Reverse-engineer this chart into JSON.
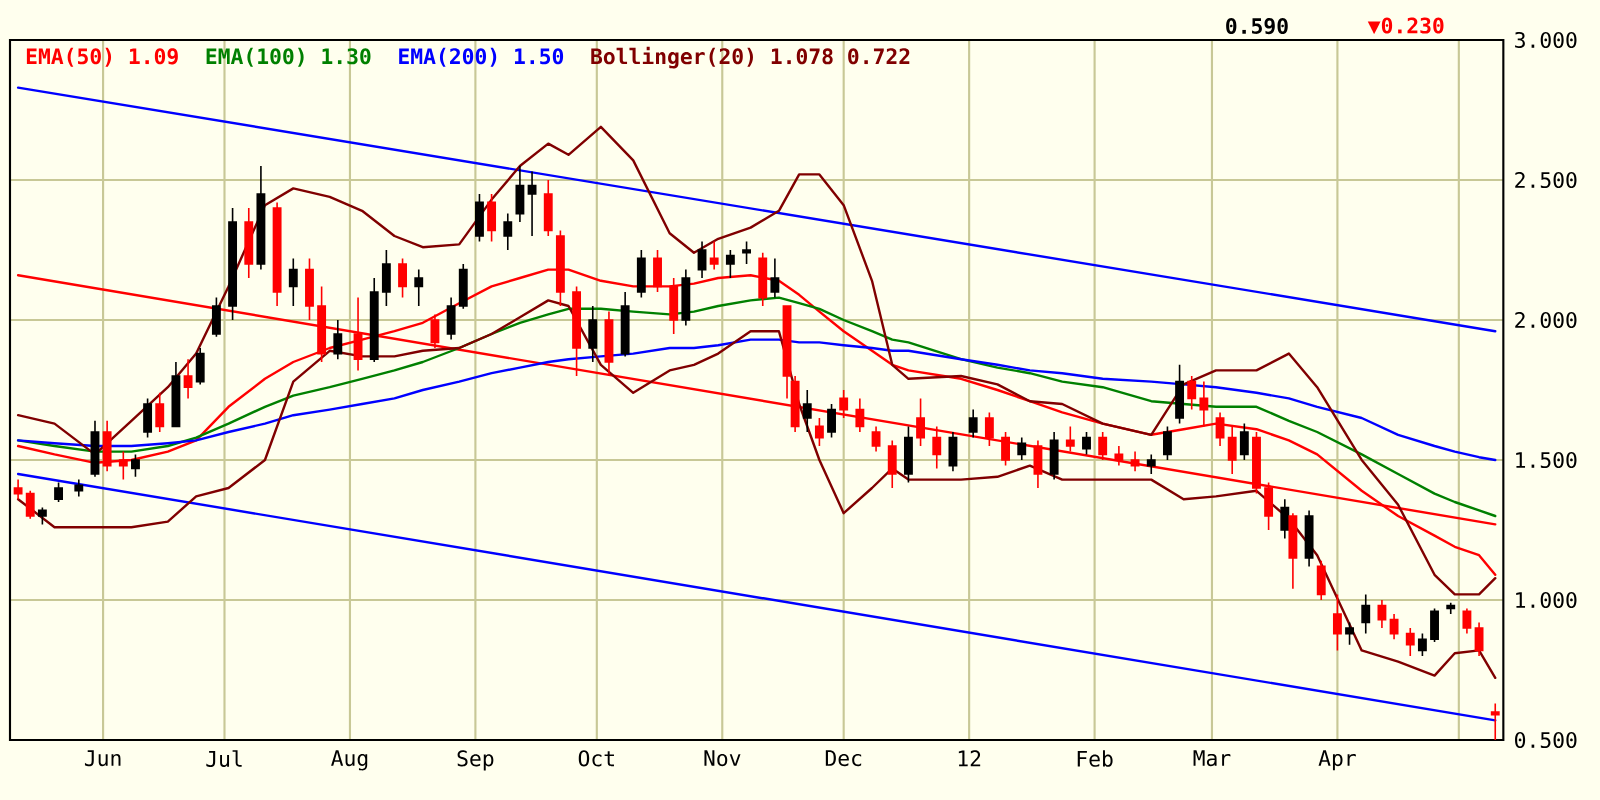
{
  "chart_data": {
    "type": "candlestick",
    "xlim": [
      "2011-05-09",
      "2012-05-12"
    ],
    "ylim": [
      0.5,
      3.0
    ],
    "xticks": [
      {
        "value": "2011-06-01",
        "label": "Jun"
      },
      {
        "value": "2011-07-01",
        "label": "Jul"
      },
      {
        "value": "2011-08-01",
        "label": "Aug"
      },
      {
        "value": "2011-09-01",
        "label": "Sep"
      },
      {
        "value": "2011-10-01",
        "label": "Oct"
      },
      {
        "value": "2011-11-01",
        "label": "Nov"
      },
      {
        "value": "2011-12-01",
        "label": "Dec"
      },
      {
        "value": "2012-01-01",
        "label": "12"
      },
      {
        "value": "2012-02-01",
        "label": "Feb"
      },
      {
        "value": "2012-03-01",
        "label": "Mar"
      },
      {
        "value": "2012-04-01",
        "label": "Apr"
      },
      {
        "value": "2012-05-01",
        "label": null
      }
    ],
    "yticks": [
      {
        "value": 0.5,
        "label": "0.500"
      },
      {
        "value": 1.0,
        "label": "1.000"
      },
      {
        "value": 1.5,
        "label": "1.500"
      },
      {
        "value": 2.0,
        "label": "2.000"
      },
      {
        "value": 2.5,
        "label": "2.500"
      },
      {
        "value": 3.0,
        "label": "3.000"
      }
    ],
    "grid": true,
    "legend": "top left",
    "annotations": [
      "0.590",
      "▼0.230"
    ],
    "x": [
      "2011-05-11",
      "2011-05-14",
      "2011-05-17",
      "2011-05-21",
      "2011-05-26",
      "2011-05-30",
      "2011-06-02",
      "2011-06-06",
      "2011-06-09",
      "2011-06-12",
      "2011-06-15",
      "2011-06-19",
      "2011-06-22",
      "2011-06-25",
      "2011-06-29",
      "2011-07-03",
      "2011-07-07",
      "2011-07-10",
      "2011-07-14",
      "2011-07-18",
      "2011-07-22",
      "2011-07-25",
      "2011-07-29",
      "2011-08-03",
      "2011-08-07",
      "2011-08-10",
      "2011-08-14",
      "2011-08-18",
      "2011-08-22",
      "2011-08-26",
      "2011-08-29",
      "2011-09-02",
      "2011-09-05",
      "2011-09-09",
      "2011-09-12",
      "2011-09-15",
      "2011-09-19",
      "2011-09-22",
      "2011-09-26",
      "2011-09-30",
      "2011-10-04",
      "2011-10-08",
      "2011-10-12",
      "2011-10-16",
      "2011-10-20",
      "2011-10-23",
      "2011-10-27",
      "2011-10-30",
      "2011-11-03",
      "2011-11-07",
      "2011-11-11",
      "2011-11-14",
      "2011-11-17",
      "2011-11-19",
      "2011-11-22",
      "2011-11-25",
      "2011-11-28",
      "2011-12-01",
      "2011-12-05",
      "2011-12-09",
      "2011-12-13",
      "2011-12-17",
      "2011-12-20",
      "2011-12-24",
      "2011-12-28",
      "2012-01-02",
      "2012-01-06",
      "2012-01-10",
      "2012-01-14",
      "2012-01-18",
      "2012-01-22",
      "2012-01-26",
      "2012-01-30",
      "2012-02-03",
      "2012-02-07",
      "2012-02-11",
      "2012-02-15",
      "2012-02-19",
      "2012-02-22",
      "2012-02-25",
      "2012-02-28",
      "2012-03-03",
      "2012-03-06",
      "2012-03-09",
      "2012-03-12",
      "2012-03-15",
      "2012-03-19",
      "2012-03-21",
      "2012-03-25",
      "2012-03-28",
      "2012-04-01",
      "2012-04-04",
      "2012-04-08",
      "2012-04-12",
      "2012-04-15",
      "2012-04-19",
      "2012-04-22",
      "2012-04-25",
      "2012-04-29",
      "2012-05-03",
      "2012-05-06",
      "2012-05-10"
    ],
    "ohlc": [
      [
        1.4,
        1.43,
        1.36,
        1.38
      ],
      [
        1.38,
        1.39,
        1.29,
        1.3
      ],
      [
        1.3,
        1.33,
        1.27,
        1.32
      ],
      [
        1.36,
        1.42,
        1.35,
        1.4
      ],
      [
        1.39,
        1.43,
        1.37,
        1.41
      ],
      [
        1.45,
        1.64,
        1.44,
        1.6
      ],
      [
        1.6,
        1.64,
        1.46,
        1.48
      ],
      [
        1.5,
        1.53,
        1.43,
        1.48
      ],
      [
        1.47,
        1.52,
        1.44,
        1.5
      ],
      [
        1.6,
        1.72,
        1.58,
        1.7
      ],
      [
        1.7,
        1.74,
        1.6,
        1.62
      ],
      [
        1.62,
        1.85,
        1.62,
        1.8
      ],
      [
        1.8,
        1.86,
        1.72,
        1.76
      ],
      [
        1.78,
        1.9,
        1.77,
        1.88
      ],
      [
        1.95,
        2.08,
        1.94,
        2.05
      ],
      [
        2.05,
        2.4,
        2.0,
        2.35
      ],
      [
        2.35,
        2.4,
        2.15,
        2.2
      ],
      [
        2.2,
        2.55,
        2.18,
        2.45
      ],
      [
        2.4,
        2.42,
        2.05,
        2.1
      ],
      [
        2.12,
        2.22,
        2.05,
        2.18
      ],
      [
        2.18,
        2.22,
        2.0,
        2.05
      ],
      [
        2.05,
        2.12,
        1.85,
        1.88
      ],
      [
        1.88,
        2.0,
        1.86,
        1.95
      ],
      [
        1.95,
        2.08,
        1.82,
        1.86
      ],
      [
        1.86,
        2.15,
        1.85,
        2.1
      ],
      [
        2.1,
        2.25,
        2.05,
        2.2
      ],
      [
        2.2,
        2.22,
        2.08,
        2.12
      ],
      [
        2.12,
        2.18,
        2.05,
        2.15
      ],
      [
        2.0,
        2.02,
        1.9,
        1.92
      ],
      [
        1.95,
        2.08,
        1.93,
        2.05
      ],
      [
        2.05,
        2.2,
        2.04,
        2.18
      ],
      [
        2.3,
        2.45,
        2.28,
        2.42
      ],
      [
        2.42,
        2.45,
        2.28,
        2.32
      ],
      [
        2.3,
        2.38,
        2.25,
        2.35
      ],
      [
        2.38,
        2.55,
        2.35,
        2.48
      ],
      [
        2.45,
        2.53,
        2.3,
        2.48
      ],
      [
        2.45,
        2.5,
        2.3,
        2.32
      ],
      [
        2.3,
        2.32,
        2.05,
        2.1
      ],
      [
        2.1,
        2.12,
        1.8,
        1.9
      ],
      [
        1.9,
        2.05,
        1.85,
        2.0
      ],
      [
        2.0,
        2.03,
        1.8,
        1.85
      ],
      [
        1.88,
        2.1,
        1.87,
        2.05
      ],
      [
        2.1,
        2.25,
        2.08,
        2.22
      ],
      [
        2.22,
        2.25,
        2.1,
        2.12
      ],
      [
        2.12,
        2.15,
        1.95,
        2.0
      ],
      [
        2.0,
        2.18,
        1.98,
        2.15
      ],
      [
        2.18,
        2.28,
        2.15,
        2.25
      ],
      [
        2.22,
        2.28,
        2.18,
        2.2
      ],
      [
        2.2,
        2.25,
        2.15,
        2.23
      ],
      [
        2.24,
        2.28,
        2.2,
        2.25
      ],
      [
        2.22,
        2.24,
        2.05,
        2.08
      ],
      [
        2.1,
        2.22,
        2.08,
        2.15
      ],
      [
        2.05,
        2.05,
        1.72,
        1.8
      ],
      [
        1.78,
        1.8,
        1.6,
        1.62
      ],
      [
        1.65,
        1.75,
        1.6,
        1.7
      ],
      [
        1.62,
        1.65,
        1.55,
        1.58
      ],
      [
        1.6,
        1.7,
        1.58,
        1.68
      ],
      [
        1.72,
        1.75,
        1.65,
        1.68
      ],
      [
        1.68,
        1.72,
        1.6,
        1.62
      ],
      [
        1.6,
        1.62,
        1.53,
        1.55
      ],
      [
        1.55,
        1.57,
        1.4,
        1.45
      ],
      [
        1.45,
        1.62,
        1.42,
        1.58
      ],
      [
        1.65,
        1.72,
        1.55,
        1.58
      ],
      [
        1.58,
        1.62,
        1.47,
        1.52
      ],
      [
        1.48,
        1.6,
        1.46,
        1.58
      ],
      [
        1.6,
        1.68,
        1.58,
        1.65
      ],
      [
        1.65,
        1.67,
        1.55,
        1.58
      ],
      [
        1.58,
        1.6,
        1.48,
        1.5
      ],
      [
        1.52,
        1.58,
        1.5,
        1.56
      ],
      [
        1.55,
        1.57,
        1.4,
        1.45
      ],
      [
        1.45,
        1.6,
        1.43,
        1.57
      ],
      [
        1.57,
        1.62,
        1.53,
        1.55
      ],
      [
        1.54,
        1.6,
        1.52,
        1.58
      ],
      [
        1.58,
        1.6,
        1.5,
        1.52
      ],
      [
        1.52,
        1.55,
        1.48,
        1.5
      ],
      [
        1.5,
        1.53,
        1.46,
        1.48
      ],
      [
        1.48,
        1.52,
        1.45,
        1.5
      ],
      [
        1.52,
        1.62,
        1.5,
        1.6
      ],
      [
        1.65,
        1.84,
        1.63,
        1.78
      ],
      [
        1.78,
        1.8,
        1.68,
        1.72
      ],
      [
        1.72,
        1.78,
        1.62,
        1.68
      ],
      [
        1.65,
        1.67,
        1.55,
        1.58
      ],
      [
        1.58,
        1.62,
        1.45,
        1.5
      ],
      [
        1.52,
        1.63,
        1.5,
        1.6
      ],
      [
        1.58,
        1.6,
        1.38,
        1.4
      ],
      [
        1.4,
        1.42,
        1.25,
        1.3
      ],
      [
        1.25,
        1.36,
        1.22,
        1.33
      ],
      [
        1.3,
        1.31,
        1.04,
        1.15
      ],
      [
        1.15,
        1.32,
        1.12,
        1.3
      ],
      [
        1.12,
        1.14,
        1.0,
        1.02
      ],
      [
        0.95,
        1.02,
        0.82,
        0.88
      ],
      [
        0.88,
        0.92,
        0.84,
        0.9
      ],
      [
        0.92,
        1.02,
        0.88,
        0.98
      ],
      [
        0.98,
        1.0,
        0.9,
        0.93
      ],
      [
        0.93,
        0.95,
        0.86,
        0.88
      ],
      [
        0.88,
        0.9,
        0.8,
        0.84
      ],
      [
        0.82,
        0.88,
        0.8,
        0.86
      ],
      [
        0.86,
        0.97,
        0.85,
        0.96
      ],
      [
        0.97,
        0.99,
        0.95,
        0.98
      ],
      [
        0.96,
        0.97,
        0.88,
        0.9
      ],
      [
        0.9,
        0.92,
        0.8,
        0.82
      ],
      [
        0.6,
        0.63,
        0.5,
        0.59
      ]
    ],
    "colors": [
      "#ff0000",
      "#ff0000",
      "#000000",
      "#000000",
      "#000000",
      "#000000",
      "#ff0000",
      "#ff0000",
      "#000000",
      "#000000",
      "#ff0000",
      "#000000",
      "#ff0000",
      "#000000",
      "#000000",
      "#000000",
      "#ff0000",
      "#000000",
      "#ff0000",
      "#000000",
      "#ff0000",
      "#ff0000",
      "#000000",
      "#ff0000",
      "#000000",
      "#000000",
      "#ff0000",
      "#000000",
      "#ff0000",
      "#000000",
      "#000000",
      "#000000",
      "#ff0000",
      "#000000",
      "#000000",
      "#000000",
      "#ff0000",
      "#ff0000",
      "#ff0000",
      "#000000",
      "#ff0000",
      "#000000",
      "#000000",
      "#ff0000",
      "#ff0000",
      "#000000",
      "#000000",
      "#ff0000",
      "#000000",
      "#000000",
      "#ff0000",
      "#000000",
      "#ff0000",
      "#ff0000",
      "#000000",
      "#ff0000",
      "#000000",
      "#ff0000",
      "#ff0000",
      "#ff0000",
      "#ff0000",
      "#000000",
      "#ff0000",
      "#ff0000",
      "#000000",
      "#000000",
      "#ff0000",
      "#ff0000",
      "#000000",
      "#ff0000",
      "#000000",
      "#ff0000",
      "#000000",
      "#ff0000",
      "#ff0000",
      "#ff0000",
      "#000000",
      "#000000",
      "#000000",
      "#ff0000",
      "#ff0000",
      "#ff0000",
      "#ff0000",
      "#000000",
      "#ff0000",
      "#ff0000",
      "#000000",
      "#ff0000",
      "#000000",
      "#ff0000",
      "#ff0000",
      "#000000",
      "#000000",
      "#ff0000",
      "#ff0000",
      "#ff0000",
      "#000000",
      "#000000",
      "#000000",
      "#ff0000",
      "#ff0000",
      "#ff0000"
    ],
    "series": [
      {
        "type": "line",
        "color": "#0000ff",
        "x": [
          "2011-05-11",
          "2012-05-10"
        ],
        "values": [
          2.83,
          1.96
        ]
      },
      {
        "type": "line",
        "color": "#ff0000",
        "x": [
          "2011-05-11",
          "2012-05-10"
        ],
        "values": [
          2.16,
          1.27
        ]
      },
      {
        "type": "line",
        "color": "#0000ff",
        "x": [
          "2011-05-11",
          "2012-05-10"
        ],
        "values": [
          1.45,
          0.57
        ]
      },
      {
        "type": "line",
        "name": "EMA(50) 1.09",
        "color": "#ff0000",
        "x": [
          "2011-05-11",
          "2011-05-20",
          "2011-05-30",
          "2011-06-08",
          "2011-06-17",
          "2011-06-24",
          "2011-07-02",
          "2011-07-11",
          "2011-07-18",
          "2011-07-27",
          "2011-08-04",
          "2011-08-12",
          "2011-08-19",
          "2011-08-28",
          "2011-09-05",
          "2011-09-12",
          "2011-09-19",
          "2011-09-24",
          "2011-10-02",
          "2011-10-10",
          "2011-10-19",
          "2011-10-25",
          "2011-10-31",
          "2011-11-08",
          "2011-11-15",
          "2011-11-20",
          "2011-11-25",
          "2011-12-01",
          "2011-12-08",
          "2011-12-13",
          "2011-12-17",
          "2011-12-30",
          "2012-01-08",
          "2012-01-16",
          "2012-01-24",
          "2012-02-03",
          "2012-02-15",
          "2012-02-23",
          "2012-03-02",
          "2012-03-12",
          "2012-03-20",
          "2012-03-27",
          "2012-04-07",
          "2012-04-16",
          "2012-04-25",
          "2012-04-30",
          "2012-05-06",
          "2012-05-10"
        ],
        "values": [
          1.55,
          1.52,
          1.49,
          1.5,
          1.53,
          1.57,
          1.69,
          1.79,
          1.85,
          1.9,
          1.93,
          1.96,
          1.99,
          2.06,
          2.12,
          2.15,
          2.18,
          2.18,
          2.14,
          2.12,
          2.12,
          2.13,
          2.15,
          2.16,
          2.14,
          2.09,
          2.03,
          1.96,
          1.89,
          1.84,
          1.82,
          1.79,
          1.75,
          1.71,
          1.67,
          1.63,
          1.59,
          1.61,
          1.63,
          1.61,
          1.57,
          1.52,
          1.39,
          1.3,
          1.23,
          1.19,
          1.16,
          1.09
        ]
      },
      {
        "type": "line",
        "name": "EMA(100) 1.30",
        "color": "#008000",
        "x": [
          "2011-05-11",
          "2011-05-20",
          "2011-05-30",
          "2011-06-08",
          "2011-06-17",
          "2011-06-24",
          "2011-07-02",
          "2011-07-11",
          "2011-07-18",
          "2011-07-27",
          "2011-08-04",
          "2011-08-12",
          "2011-08-19",
          "2011-08-28",
          "2011-09-05",
          "2011-09-12",
          "2011-09-19",
          "2011-09-24",
          "2011-10-02",
          "2011-10-10",
          "2011-10-19",
          "2011-10-25",
          "2011-10-31",
          "2011-11-08",
          "2011-11-15",
          "2011-11-20",
          "2011-11-25",
          "2011-12-01",
          "2011-12-08",
          "2011-12-13",
          "2011-12-17",
          "2011-12-30",
          "2012-01-08",
          "2012-01-16",
          "2012-01-24",
          "2012-02-03",
          "2012-02-15",
          "2012-02-23",
          "2012-03-02",
          "2012-03-12",
          "2012-03-20",
          "2012-03-27",
          "2012-04-07",
          "2012-04-16",
          "2012-04-25",
          "2012-04-30",
          "2012-05-06",
          "2012-05-10"
        ],
        "values": [
          1.57,
          1.55,
          1.53,
          1.53,
          1.55,
          1.58,
          1.63,
          1.69,
          1.73,
          1.76,
          1.79,
          1.82,
          1.85,
          1.9,
          1.95,
          1.99,
          2.02,
          2.04,
          2.04,
          2.03,
          2.02,
          2.03,
          2.05,
          2.07,
          2.08,
          2.06,
          2.04,
          2.0,
          1.96,
          1.93,
          1.92,
          1.86,
          1.83,
          1.81,
          1.78,
          1.76,
          1.71,
          1.7,
          1.69,
          1.69,
          1.64,
          1.6,
          1.52,
          1.45,
          1.38,
          1.35,
          1.32,
          1.3
        ]
      },
      {
        "type": "line",
        "name": "EMA(200) 1.50",
        "color": "#0000ff",
        "x": [
          "2011-05-11",
          "2011-05-20",
          "2011-05-30",
          "2011-06-08",
          "2011-06-17",
          "2011-06-24",
          "2011-07-02",
          "2011-07-11",
          "2011-07-18",
          "2011-07-27",
          "2011-08-04",
          "2011-08-12",
          "2011-08-19",
          "2011-08-28",
          "2011-09-05",
          "2011-09-12",
          "2011-09-19",
          "2011-09-24",
          "2011-10-02",
          "2011-10-10",
          "2011-10-19",
          "2011-10-25",
          "2011-10-31",
          "2011-11-08",
          "2011-11-15",
          "2011-11-20",
          "2011-11-25",
          "2011-12-01",
          "2011-12-08",
          "2011-12-13",
          "2011-12-17",
          "2011-12-30",
          "2012-01-08",
          "2012-01-16",
          "2012-01-24",
          "2012-02-03",
          "2012-02-15",
          "2012-02-23",
          "2012-03-02",
          "2012-03-12",
          "2012-03-20",
          "2012-03-27",
          "2012-04-07",
          "2012-04-16",
          "2012-04-25",
          "2012-04-30",
          "2012-05-06",
          "2012-05-10"
        ],
        "values": [
          1.57,
          1.56,
          1.55,
          1.55,
          1.56,
          1.57,
          1.6,
          1.63,
          1.66,
          1.68,
          1.7,
          1.72,
          1.75,
          1.78,
          1.81,
          1.83,
          1.85,
          1.86,
          1.87,
          1.88,
          1.9,
          1.9,
          1.91,
          1.93,
          1.93,
          1.92,
          1.92,
          1.91,
          1.9,
          1.89,
          1.89,
          1.86,
          1.84,
          1.82,
          1.81,
          1.79,
          1.78,
          1.77,
          1.76,
          1.74,
          1.72,
          1.69,
          1.65,
          1.59,
          1.55,
          1.53,
          1.51,
          1.5
        ]
      },
      {
        "type": "line",
        "name": "Bollinger(20) 1.078 0.722",
        "color": "#800000",
        "x": [
          "2011-05-11",
          "2011-05-20",
          "2011-05-30",
          "2011-06-08",
          "2011-06-17",
          "2011-06-24",
          "2011-07-02",
          "2011-07-11",
          "2011-07-18",
          "2011-07-27",
          "2011-08-04",
          "2011-08-12",
          "2011-08-19",
          "2011-08-28",
          "2011-09-05",
          "2011-09-12",
          "2011-09-19",
          "2011-09-24",
          "2011-10-02",
          "2011-10-10",
          "2011-10-19",
          "2011-10-25",
          "2011-10-31",
          "2011-11-08",
          "2011-11-15",
          "2011-11-20",
          "2011-11-25",
          "2011-12-01",
          "2011-12-08",
          "2011-12-13",
          "2011-12-17",
          "2011-12-30",
          "2012-01-08",
          "2012-01-16",
          "2012-01-24",
          "2012-02-03",
          "2012-02-15",
          "2012-02-23",
          "2012-03-02",
          "2012-03-12",
          "2012-03-20",
          "2012-03-27",
          "2012-04-07",
          "2012-04-16",
          "2012-04-25",
          "2012-04-30",
          "2012-05-06",
          "2012-05-10"
        ],
        "values": [
          1.66,
          1.63,
          1.52,
          1.64,
          1.76,
          1.88,
          2.12,
          2.41,
          2.47,
          2.44,
          2.39,
          2.3,
          2.26,
          2.27,
          2.43,
          2.55,
          2.63,
          2.59,
          2.69,
          2.57,
          2.31,
          2.24,
          2.29,
          2.33,
          2.39,
          2.52,
          2.52,
          2.41,
          2.14,
          1.84,
          1.79,
          1.8,
          1.77,
          1.71,
          1.7,
          1.63,
          1.59,
          1.77,
          1.82,
          1.82,
          1.88,
          1.76,
          1.5,
          1.34,
          1.09,
          1.02,
          1.02,
          1.078
        ]
      },
      {
        "type": "line",
        "color": "#800000",
        "x": [
          "2011-05-11",
          "2011-05-20",
          "2011-05-30",
          "2011-06-08",
          "2011-06-17",
          "2011-06-24",
          "2011-07-02",
          "2011-07-11",
          "2011-07-18",
          "2011-07-27",
          "2011-08-04",
          "2011-08-12",
          "2011-08-19",
          "2011-08-28",
          "2011-09-05",
          "2011-09-12",
          "2011-09-19",
          "2011-09-24",
          "2011-10-02",
          "2011-10-10",
          "2011-10-19",
          "2011-10-25",
          "2011-10-31",
          "2011-11-08",
          "2011-11-15",
          "2011-11-20",
          "2011-11-25",
          "2011-12-01",
          "2011-12-08",
          "2011-12-13",
          "2011-12-17",
          "2011-12-30",
          "2012-01-08",
          "2012-01-16",
          "2012-01-24",
          "2012-02-03",
          "2012-02-15",
          "2012-02-23",
          "2012-03-02",
          "2012-03-12",
          "2012-03-20",
          "2012-03-27",
          "2012-04-07",
          "2012-04-16",
          "2012-04-25",
          "2012-04-30",
          "2012-05-06",
          "2012-05-10"
        ],
        "values": [
          1.36,
          1.26,
          1.26,
          1.26,
          1.28,
          1.37,
          1.4,
          1.5,
          1.78,
          1.89,
          1.87,
          1.87,
          1.89,
          1.9,
          1.95,
          2.01,
          2.07,
          2.05,
          1.84,
          1.74,
          1.82,
          1.84,
          1.88,
          1.96,
          1.96,
          1.7,
          1.5,
          1.31,
          1.4,
          1.47,
          1.43,
          1.43,
          1.44,
          1.48,
          1.43,
          1.43,
          1.43,
          1.36,
          1.37,
          1.39,
          1.29,
          1.16,
          0.82,
          0.78,
          0.73,
          0.81,
          0.82,
          0.722
        ]
      }
    ]
  }
}
